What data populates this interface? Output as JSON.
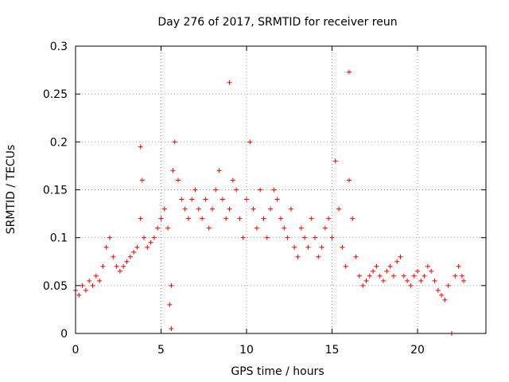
{
  "chart_data": {
    "type": "scatter",
    "title": "Day 276 of 2017, SRMTID for receiver reun",
    "xlabel": "GPS time / hours",
    "ylabel": "SRMTID / TECUs",
    "xlim": [
      0,
      24
    ],
    "ylim": [
      0,
      0.3
    ],
    "xticks": [
      0,
      5,
      10,
      15,
      20
    ],
    "xtick_labels": [
      "0",
      "5",
      "10",
      "15",
      "20"
    ],
    "yticks": [
      0,
      0.05,
      0.1,
      0.15,
      0.2,
      0.25,
      0.3
    ],
    "ytick_labels": [
      "0",
      "0.05",
      "0.1",
      "0.15",
      "0.2",
      "0.25",
      "0.3"
    ],
    "grid": true,
    "marker": "+",
    "marker_color": "#ff0000",
    "series": [
      {
        "name": "SRMTID",
        "x": [
          0.0,
          0.2,
          0.4,
          0.6,
          0.8,
          1.0,
          1.2,
          1.4,
          1.6,
          1.8,
          2.0,
          2.2,
          2.4,
          2.6,
          2.8,
          3.0,
          3.2,
          3.4,
          3.6,
          3.8,
          3.8,
          3.9,
          4.0,
          4.2,
          4.4,
          4.6,
          4.8,
          5.0,
          5.2,
          5.4,
          5.5,
          5.6,
          5.6,
          5.7,
          5.8,
          6.0,
          6.2,
          6.4,
          6.6,
          6.8,
          7.0,
          7.2,
          7.4,
          7.6,
          7.8,
          8.0,
          8.2,
          8.4,
          8.6,
          8.8,
          9.0,
          9.0,
          9.2,
          9.4,
          9.6,
          9.8,
          10.0,
          10.2,
          10.4,
          10.6,
          10.8,
          11.0,
          11.2,
          11.4,
          11.6,
          11.8,
          12.0,
          12.2,
          12.4,
          12.6,
          12.8,
          13.0,
          13.2,
          13.4,
          13.6,
          13.8,
          14.0,
          14.2,
          14.4,
          14.6,
          14.8,
          15.0,
          15.2,
          15.4,
          15.6,
          15.8,
          16.0,
          16.0,
          16.2,
          16.4,
          16.6,
          16.8,
          17.0,
          17.2,
          17.4,
          17.6,
          17.8,
          18.0,
          18.2,
          18.4,
          18.6,
          18.8,
          19.0,
          19.2,
          19.4,
          19.6,
          19.8,
          20.0,
          20.2,
          20.4,
          20.6,
          20.8,
          21.0,
          21.2,
          21.4,
          21.6,
          21.8,
          22.0,
          22.2,
          22.4,
          22.6,
          22.7
        ],
        "y": [
          0.045,
          0.04,
          0.05,
          0.045,
          0.055,
          0.05,
          0.06,
          0.055,
          0.07,
          0.09,
          0.1,
          0.08,
          0.07,
          0.065,
          0.07,
          0.075,
          0.08,
          0.085,
          0.09,
          0.12,
          0.195,
          0.16,
          0.1,
          0.09,
          0.095,
          0.1,
          0.11,
          0.12,
          0.13,
          0.11,
          0.03,
          0.005,
          0.05,
          0.17,
          0.2,
          0.16,
          0.14,
          0.13,
          0.12,
          0.14,
          0.15,
          0.13,
          0.12,
          0.14,
          0.11,
          0.13,
          0.15,
          0.17,
          0.14,
          0.12,
          0.13,
          0.262,
          0.16,
          0.15,
          0.12,
          0.1,
          0.14,
          0.2,
          0.13,
          0.11,
          0.15,
          0.12,
          0.1,
          0.13,
          0.15,
          0.14,
          0.12,
          0.11,
          0.1,
          0.13,
          0.09,
          0.08,
          0.11,
          0.1,
          0.09,
          0.12,
          0.1,
          0.08,
          0.09,
          0.11,
          0.12,
          0.1,
          0.18,
          0.13,
          0.09,
          0.07,
          0.273,
          0.16,
          0.12,
          0.08,
          0.06,
          0.05,
          0.055,
          0.06,
          0.065,
          0.07,
          0.06,
          0.055,
          0.065,
          0.07,
          0.06,
          0.075,
          0.08,
          0.06,
          0.055,
          0.05,
          0.06,
          0.065,
          0.055,
          0.06,
          0.07,
          0.065,
          0.055,
          0.045,
          0.04,
          0.035,
          0.05,
          0.0,
          0.06,
          0.07,
          0.06,
          0.055
        ]
      }
    ]
  }
}
